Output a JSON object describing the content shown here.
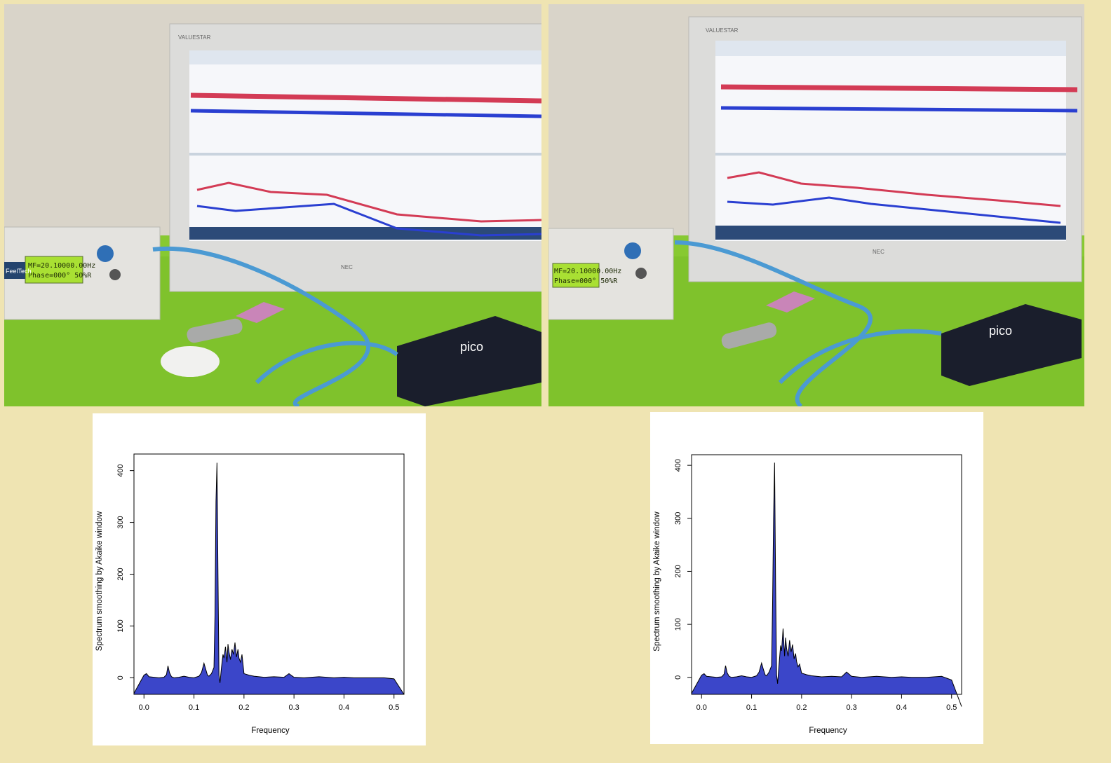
{
  "photos": [
    {
      "monitor_brand": "VALUESTAR",
      "monitor_maker": "NEC",
      "logger_brand": "pico",
      "generator_brand": "FeelTech",
      "lcd_line1": "MF=20.10000.00Hz",
      "lcd_line2": "Phase=000° 50%R"
    },
    {
      "monitor_brand": "VALUESTAR",
      "monitor_maker": "NEC",
      "logger_brand": "pico",
      "generator_brand": "",
      "lcd_line1": "MF=20.10000.00Hz",
      "lcd_line2": "Phase=000° 50%R"
    }
  ],
  "chart_data": [
    {
      "type": "area",
      "xlabel": "Frequency",
      "ylabel": "Spectrum smoothing by  Akaike  window",
      "xlim": [
        -0.02,
        0.52
      ],
      "ylim": [
        -32,
        432
      ],
      "xticks": [
        "0.0",
        "0.1",
        "0.2",
        "0.3",
        "0.4",
        "0.5"
      ],
      "yticks": [
        "0",
        "100",
        "200",
        "300",
        "400"
      ],
      "fill_color": "#3b46c9",
      "x": [
        -0.02,
        0.0,
        0.005,
        0.01,
        0.02,
        0.03,
        0.04,
        0.045,
        0.048,
        0.051,
        0.055,
        0.06,
        0.07,
        0.08,
        0.09,
        0.1,
        0.11,
        0.115,
        0.12,
        0.123,
        0.127,
        0.13,
        0.135,
        0.14,
        0.142,
        0.144,
        0.146,
        0.148,
        0.15,
        0.152,
        0.155,
        0.158,
        0.16,
        0.163,
        0.166,
        0.168,
        0.17,
        0.173,
        0.176,
        0.179,
        0.182,
        0.185,
        0.188,
        0.19,
        0.193,
        0.196,
        0.2,
        0.21,
        0.22,
        0.24,
        0.26,
        0.28,
        0.29,
        0.3,
        0.32,
        0.35,
        0.38,
        0.4,
        0.42,
        0.45,
        0.48,
        0.5,
        0.52
      ],
      "y": [
        -30,
        5,
        8,
        2,
        1,
        0,
        1,
        6,
        23,
        10,
        2,
        0,
        1,
        3,
        1,
        0,
        3,
        10,
        28,
        18,
        5,
        3,
        8,
        20,
        120,
        340,
        415,
        200,
        5,
        -10,
        20,
        45,
        38,
        60,
        30,
        65,
        50,
        35,
        55,
        45,
        68,
        40,
        55,
        38,
        30,
        45,
        8,
        5,
        3,
        1,
        2,
        1,
        8,
        1,
        0,
        2,
        0,
        1,
        0,
        0,
        0,
        -2,
        -32
      ]
    },
    {
      "type": "area",
      "xlabel": "Frequency",
      "ylabel": "Spectrum smoothing by  Akaike  window",
      "xlim": [
        -0.02,
        0.52
      ],
      "ylim": [
        -32,
        420
      ],
      "xticks": [
        "0.0",
        "0.1",
        "0.2",
        "0.3",
        "0.4",
        "0.5"
      ],
      "yticks": [
        "0",
        "100",
        "200",
        "300",
        "400"
      ],
      "fill_color": "#3b46c9",
      "x": [
        -0.02,
        0.0,
        0.005,
        0.01,
        0.02,
        0.03,
        0.04,
        0.045,
        0.048,
        0.051,
        0.055,
        0.06,
        0.07,
        0.08,
        0.09,
        0.1,
        0.11,
        0.115,
        0.12,
        0.123,
        0.127,
        0.13,
        0.135,
        0.14,
        0.142,
        0.144,
        0.146,
        0.148,
        0.15,
        0.152,
        0.155,
        0.158,
        0.16,
        0.163,
        0.166,
        0.168,
        0.17,
        0.173,
        0.176,
        0.179,
        0.182,
        0.185,
        0.188,
        0.19,
        0.193,
        0.196,
        0.2,
        0.21,
        0.22,
        0.24,
        0.26,
        0.28,
        0.29,
        0.3,
        0.32,
        0.35,
        0.38,
        0.4,
        0.42,
        0.45,
        0.48,
        0.5,
        0.52
      ],
      "y": [
        -30,
        4,
        7,
        2,
        1,
        0,
        1,
        6,
        22,
        9,
        2,
        0,
        1,
        3,
        1,
        0,
        3,
        10,
        27,
        17,
        5,
        3,
        10,
        22,
        140,
        300,
        405,
        180,
        5,
        -12,
        25,
        60,
        50,
        92,
        40,
        75,
        55,
        40,
        70,
        48,
        62,
        35,
        45,
        30,
        20,
        25,
        8,
        5,
        3,
        1,
        2,
        1,
        10,
        2,
        0,
        2,
        0,
        1,
        0,
        0,
        2,
        -5,
        -55
      ]
    }
  ]
}
